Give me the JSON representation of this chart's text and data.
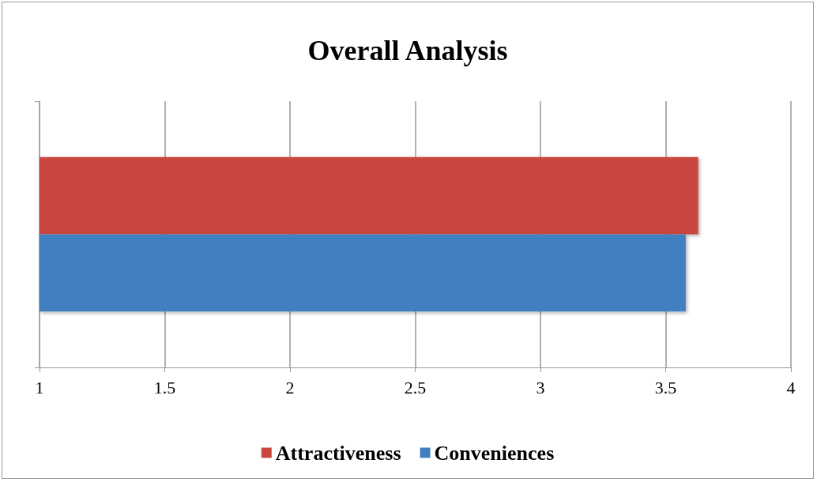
{
  "chart_data": {
    "type": "bar",
    "orientation": "horizontal",
    "title": "Overall Analysis",
    "categories": [
      null
    ],
    "series": [
      {
        "name": "Attractiveness",
        "color": "#c9473f",
        "values": [
          3.63
        ]
      },
      {
        "name": "Conveniences",
        "color": "#3f7fc0",
        "values": [
          3.58
        ]
      }
    ],
    "xlim": [
      1,
      4
    ],
    "xticks": [
      1,
      1.5,
      2,
      2.5,
      3,
      3.5,
      4
    ],
    "grid": "x",
    "legend": "bottom"
  }
}
